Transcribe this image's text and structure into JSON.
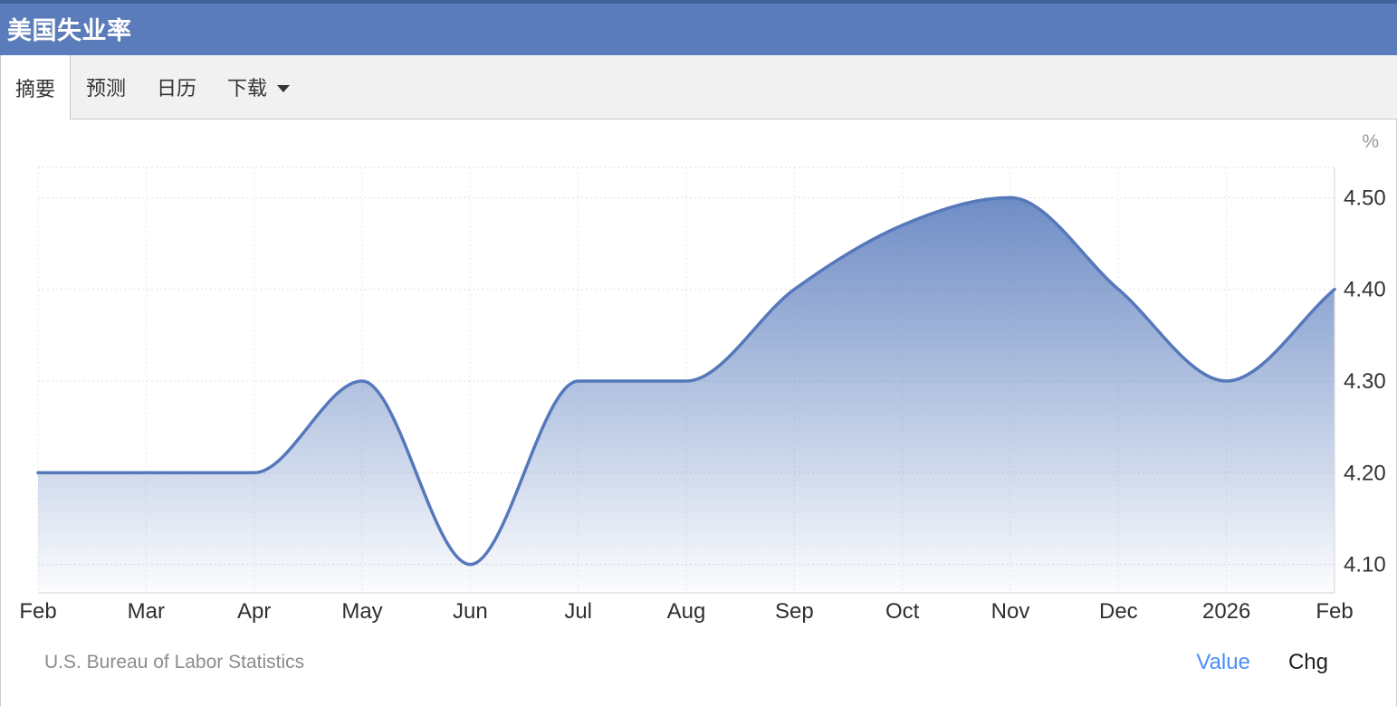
{
  "header": {
    "title": "美国失业率"
  },
  "tabs": [
    {
      "label": "摘要",
      "active": true
    },
    {
      "label": "预测",
      "active": false
    },
    {
      "label": "日历",
      "active": false
    },
    {
      "label": "下载",
      "active": false,
      "has_dropdown": true
    }
  ],
  "icons": {
    "dropdown_caret": "triangle-down"
  },
  "colors": {
    "header_bg": "#5b7cba",
    "header_top_strip": "#43619b",
    "value_link": "#4d8ef7"
  },
  "chart_data": {
    "type": "area",
    "title": "美国失业率 (US Unemployment Rate)",
    "unit": "%",
    "categories": [
      "Feb",
      "Mar",
      "Apr",
      "May",
      "Jun",
      "Jul",
      "Aug",
      "Sep",
      "Oct",
      "Nov",
      "Dec",
      "2026",
      "Feb"
    ],
    "values": [
      4.2,
      4.2,
      4.2,
      4.3,
      4.1,
      4.3,
      4.3,
      4.4,
      4.47,
      4.5,
      4.4,
      4.3,
      4.4
    ],
    "y_ticks": [
      4.1,
      4.2,
      4.3,
      4.4,
      4.5
    ],
    "y_tick_labels": [
      "4.10",
      "4.20",
      "4.30",
      "4.40",
      "4.50"
    ],
    "ylim": [
      4.069,
      4.533
    ],
    "grid": true,
    "legend": false,
    "smoothing": "monotone-spline",
    "line_color": "#5578bb",
    "fill_top_color": "rgba(85,120,187,0.85)",
    "fill_bottom_color": "rgba(85,120,187,0.02)",
    "grid_color_h": "#dedede",
    "grid_color_v": "#e9e9e9",
    "axis_line_color": "#d6d6d6",
    "tick_label_color": "#333333",
    "unit_label_color": "#999999"
  },
  "footer": {
    "source": "U.S. Bureau of Labor Statistics",
    "value_label": "Value",
    "chg_label": "Chg"
  }
}
